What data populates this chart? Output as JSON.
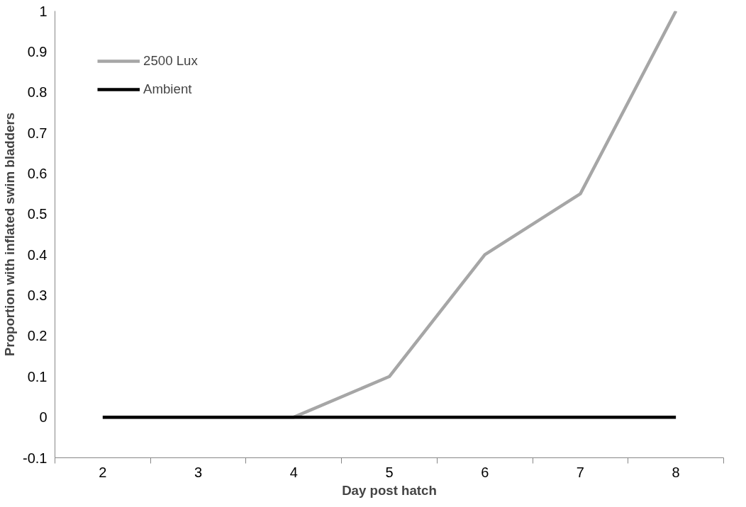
{
  "chart_data": {
    "type": "line",
    "xlabel": "Day post hatch",
    "ylabel": "Proportion with inflated swim bladders",
    "categories": [
      "2",
      "3",
      "4",
      "5",
      "6",
      "7",
      "8"
    ],
    "series": [
      {
        "name": "2500 Lux",
        "color": "#a6a6a6",
        "values": [
          0,
          0,
          0,
          0.1,
          0.4,
          0.55,
          1
        ]
      },
      {
        "name": "Ambient",
        "color": "#000000",
        "values": [
          0,
          0,
          0,
          0,
          0,
          0,
          0
        ]
      }
    ],
    "ylim": [
      -0.1,
      1
    ],
    "yticks": [
      -0.1,
      0,
      0.1,
      0.2,
      0.3,
      0.4,
      0.5,
      0.6,
      0.7,
      0.8,
      0.9,
      1
    ],
    "grid": false,
    "legend": "top left",
    "marker": "none",
    "line_style": "solid"
  }
}
